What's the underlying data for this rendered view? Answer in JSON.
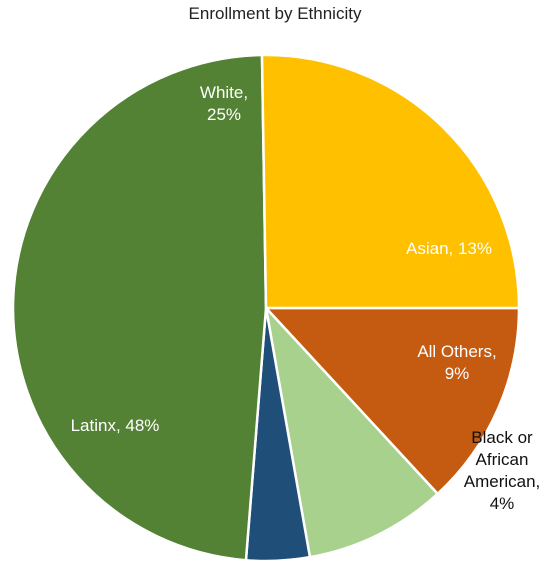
{
  "chart_data": {
    "type": "pie",
    "title": "Enrollment by Ethnicity",
    "slices": [
      {
        "label": [
          "Asian, 13%"
        ],
        "value": 13,
        "color": "#C55A11",
        "label_color": "#ffffff"
      },
      {
        "label": [
          "All Others,",
          "9%"
        ],
        "value": 9,
        "color": "#A9D18E",
        "label_color": "#ffffff"
      },
      {
        "label": [
          "Black or",
          "African",
          "American,",
          "4%"
        ],
        "value": 4,
        "color": "#1F4E79",
        "label_color": "#111111"
      },
      {
        "label": [
          "Latinx, 48%"
        ],
        "value": 48,
        "color": "#548235",
        "label_color": "#ffffff"
      },
      {
        "label": [
          "White,",
          "25%"
        ],
        "value": 25,
        "color": "#FFC000",
        "label_color": "#ffffff"
      }
    ],
    "legend": "none"
  }
}
